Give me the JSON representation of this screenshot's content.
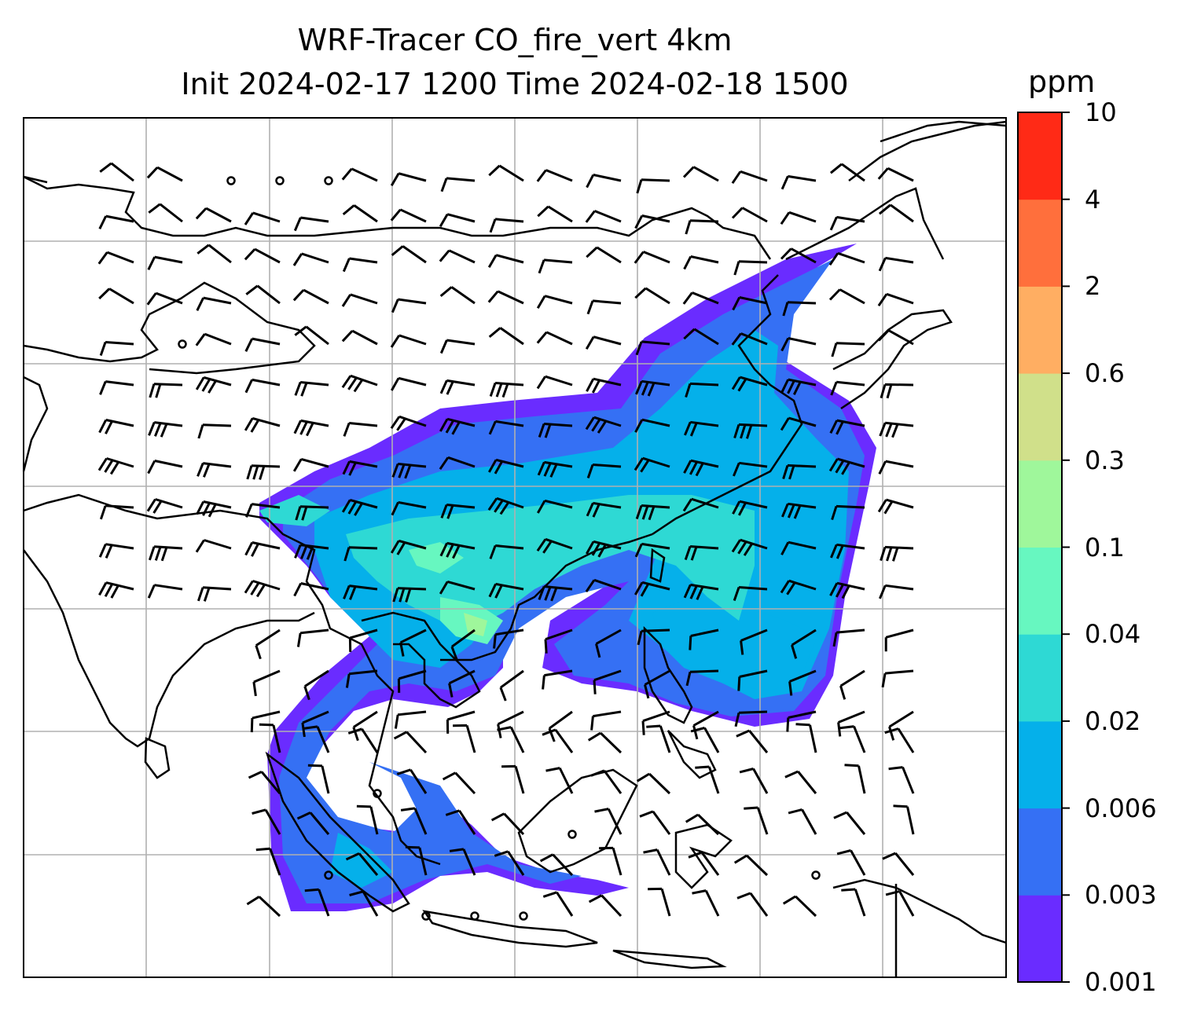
{
  "title_line1": "WRF-Tracer CO_fire_vert 4km",
  "title_line2": "Init 2024-02-17 1200 Time 2024-02-18 1500",
  "colorbar": {
    "unit": "ppm",
    "levels": [
      "0.001",
      "0.003",
      "0.006",
      "0.02",
      "0.04",
      "0.1",
      "0.3",
      "0.6",
      "2",
      "4",
      "10"
    ],
    "colors": [
      "#6a2cff",
      "#3570f4",
      "#05b0ea",
      "#2ed9d4",
      "#67f7c0",
      "#9ff79b",
      "#d0e08a",
      "#ffae62",
      "#ff6f3c",
      "#ff2a16"
    ]
  },
  "map": {
    "grid": true,
    "coastline_color": "#000000",
    "grid_color": "#b0b0b0",
    "wind_barb_color": "#000000"
  }
}
